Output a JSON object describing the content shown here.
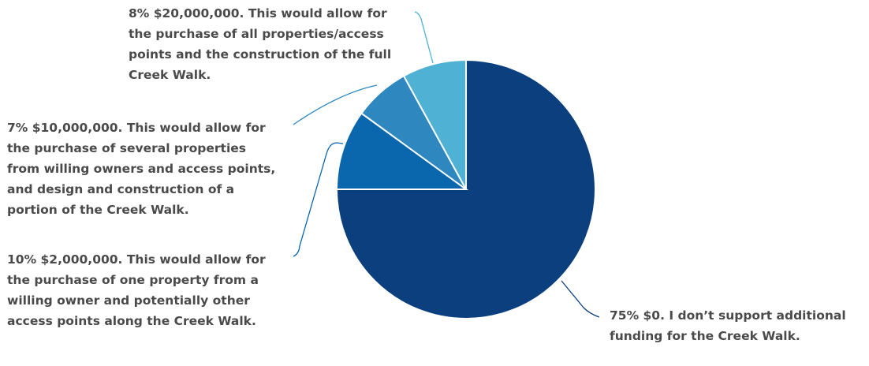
{
  "chart_data": {
    "type": "pie",
    "slices": [
      {
        "percent": 75,
        "label": "75% $0. I don’t support additional funding for the Creek Walk.",
        "color": "#0b3f7e"
      },
      {
        "percent": 10,
        "label": "10% $2,000,000. This would allow for the purchase of one property from a willing owner and potentially other access points along the Creek Walk.",
        "color": "#0a66ad"
      },
      {
        "percent": 7,
        "label": "7% $10,000,000. This would allow for the purchase of several properties from willing owners and access points, and design and construction of a portion of the Creek Walk.",
        "color": "#2e88bf"
      },
      {
        "percent": 8,
        "label": "8% $20,000,000. This would allow for the purchase of all properties/access points and the construction of the full Creek Walk.",
        "color": "#4fb2d5"
      }
    ]
  }
}
